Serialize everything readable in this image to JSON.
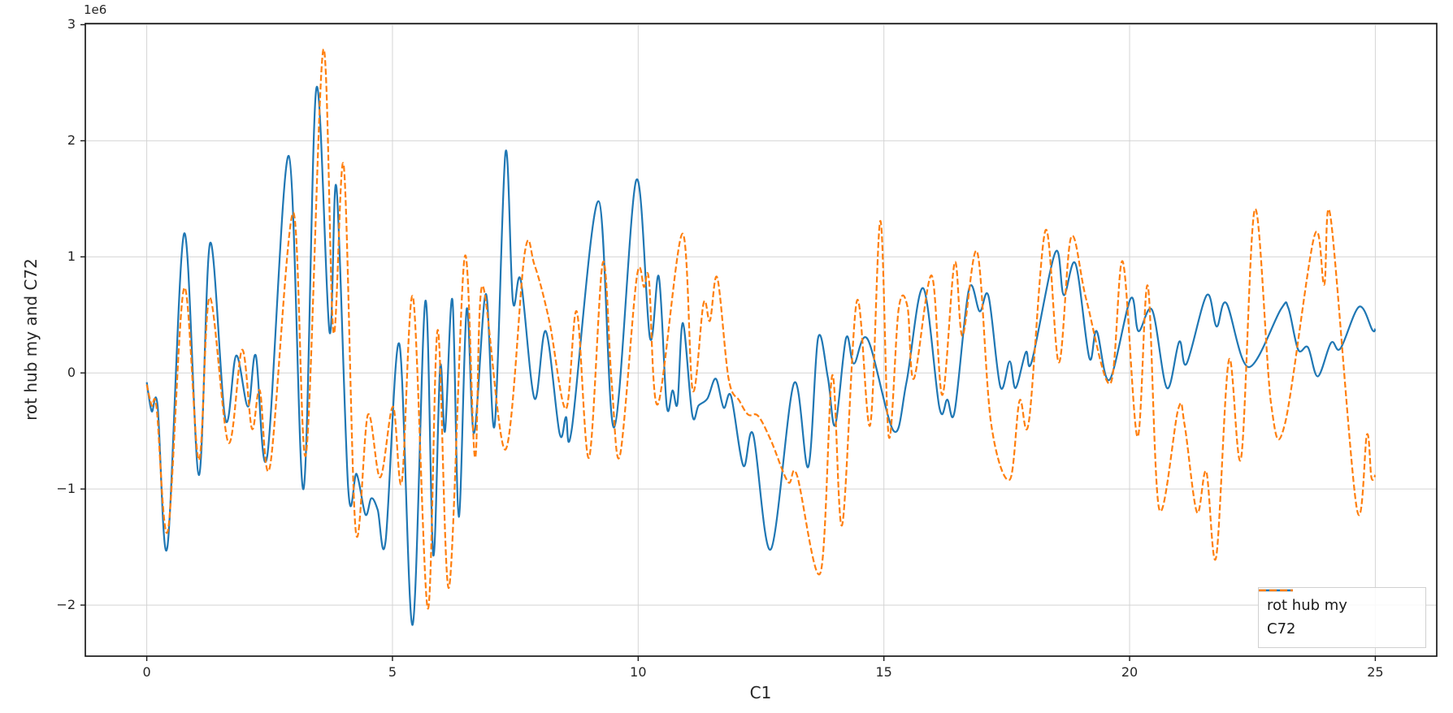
{
  "colors": {
    "blue_series": "#1f77b4",
    "orange_series": "#ff7f0e",
    "grid": "#d4d4d4",
    "spine": "#1a1a1a",
    "text": "#262626",
    "legend_border": "#d0d0d0",
    "background": "#ffffff"
  },
  "chart_data": {
    "type": "line",
    "xlabel": "C1",
    "ylabel": "rot hub my and C72",
    "y_offset_label": "1e6",
    "y_unit_multiplier": 1000000,
    "xlim": [
      -1.25,
      26.25
    ],
    "ylim": [
      -2.44,
      3.01
    ],
    "grid": true,
    "xticks": {
      "values": [
        0,
        5,
        10,
        15,
        20,
        25
      ],
      "labels": [
        "0",
        "5",
        "10",
        "15",
        "20",
        "25"
      ]
    },
    "yticks": {
      "values": [
        3,
        2,
        1,
        0,
        -1,
        -2
      ],
      "labels": [
        "3",
        "2",
        "1",
        "0",
        "−1",
        "−2"
      ]
    },
    "legend": {
      "position": "lower right",
      "entries": [
        "rot hub my",
        "C72"
      ]
    },
    "series": [
      {
        "name": "rot hub my",
        "color": "#1f77b4",
        "style": "solid",
        "points": [
          [
            0,
            -0.08
          ],
          [
            0.1,
            -0.33
          ],
          [
            0.22,
            -0.28
          ],
          [
            0.42,
            -1.5
          ],
          [
            0.76,
            1.2
          ],
          [
            1.06,
            -0.88
          ],
          [
            1.29,
            1.12
          ],
          [
            1.6,
            -0.4
          ],
          [
            1.82,
            0.15
          ],
          [
            2.06,
            -0.29
          ],
          [
            2.22,
            0.15
          ],
          [
            2.45,
            -0.72
          ],
          [
            2.89,
            1.87
          ],
          [
            3.19,
            -1.0
          ],
          [
            3.45,
            2.45
          ],
          [
            3.72,
            0.35
          ],
          [
            3.86,
            1.6
          ],
          [
            4.1,
            -1.0
          ],
          [
            4.27,
            -0.87
          ],
          [
            4.45,
            -1.22
          ],
          [
            4.57,
            -1.08
          ],
          [
            4.7,
            -1.18
          ],
          [
            4.86,
            -1.45
          ],
          [
            5.14,
            0.25
          ],
          [
            5.41,
            -2.17
          ],
          [
            5.67,
            0.62
          ],
          [
            5.83,
            -1.57
          ],
          [
            5.97,
            0.05
          ],
          [
            6.07,
            -0.5
          ],
          [
            6.22,
            0.63
          ],
          [
            6.35,
            -1.24
          ],
          [
            6.51,
            0.55
          ],
          [
            6.66,
            -0.52
          ],
          [
            6.9,
            0.68
          ],
          [
            7.08,
            -0.45
          ],
          [
            7.3,
            1.9
          ],
          [
            7.45,
            0.62
          ],
          [
            7.61,
            0.8
          ],
          [
            7.89,
            -0.22
          ],
          [
            8.12,
            0.36
          ],
          [
            8.4,
            -0.52
          ],
          [
            8.53,
            -0.38
          ],
          [
            8.65,
            -0.48
          ],
          [
            9.19,
            1.48
          ],
          [
            9.51,
            -0.47
          ],
          [
            9.96,
            1.66
          ],
          [
            10.24,
            0.3
          ],
          [
            10.42,
            0.83
          ],
          [
            10.58,
            -0.28
          ],
          [
            10.7,
            -0.15
          ],
          [
            10.8,
            -0.26
          ],
          [
            10.91,
            0.43
          ],
          [
            11.1,
            -0.36
          ],
          [
            11.23,
            -0.28
          ],
          [
            11.41,
            -0.22
          ],
          [
            11.58,
            -0.05
          ],
          [
            11.74,
            -0.3
          ],
          [
            11.89,
            -0.2
          ],
          [
            12.14,
            -0.8
          ],
          [
            12.34,
            -0.53
          ],
          [
            12.7,
            -1.52
          ],
          [
            13.17,
            -0.09
          ],
          [
            13.46,
            -0.81
          ],
          [
            13.66,
            0.3
          ],
          [
            13.86,
            -0.04
          ],
          [
            14.01,
            -0.45
          ],
          [
            14.23,
            0.3
          ],
          [
            14.39,
            0.08
          ],
          [
            14.67,
            0.29
          ],
          [
            15.2,
            -0.5
          ],
          [
            15.46,
            -0.08
          ],
          [
            15.8,
            0.73
          ],
          [
            16.13,
            -0.3
          ],
          [
            16.29,
            -0.23
          ],
          [
            16.44,
            -0.33
          ],
          [
            16.73,
            0.72
          ],
          [
            16.95,
            0.53
          ],
          [
            17.13,
            0.66
          ],
          [
            17.37,
            -0.12
          ],
          [
            17.56,
            0.1
          ],
          [
            17.68,
            -0.13
          ],
          [
            17.89,
            0.18
          ],
          [
            18.01,
            0.1
          ],
          [
            18.49,
            1.04
          ],
          [
            18.66,
            0.67
          ],
          [
            18.9,
            0.94
          ],
          [
            19.18,
            0.13
          ],
          [
            19.33,
            0.36
          ],
          [
            19.59,
            -0.06
          ],
          [
            20.02,
            0.64
          ],
          [
            20.18,
            0.36
          ],
          [
            20.46,
            0.54
          ],
          [
            20.76,
            -0.13
          ],
          [
            21.01,
            0.27
          ],
          [
            21.16,
            0.08
          ],
          [
            21.57,
            0.67
          ],
          [
            21.77,
            0.4
          ],
          [
            21.97,
            0.6
          ],
          [
            22.42,
            0.05
          ],
          [
            23.08,
            0.55
          ],
          [
            23.23,
            0.56
          ],
          [
            23.43,
            0.2
          ],
          [
            23.63,
            0.22
          ],
          [
            23.83,
            -0.03
          ],
          [
            24.1,
            0.26
          ],
          [
            24.29,
            0.21
          ],
          [
            24.67,
            0.57
          ],
          [
            24.94,
            0.37
          ],
          [
            25,
            0.38
          ]
        ]
      },
      {
        "name": "C72",
        "color": "#ff7f0e",
        "style": "dashed",
        "points": [
          [
            0,
            -0.1
          ],
          [
            0.1,
            -0.28
          ],
          [
            0.2,
            -0.3
          ],
          [
            0.43,
            -1.36
          ],
          [
            0.76,
            0.73
          ],
          [
            1.06,
            -0.75
          ],
          [
            1.28,
            0.65
          ],
          [
            1.66,
            -0.6
          ],
          [
            1.94,
            0.2
          ],
          [
            2.14,
            -0.48
          ],
          [
            2.3,
            -0.15
          ],
          [
            2.51,
            -0.8
          ],
          [
            2.98,
            1.38
          ],
          [
            3.24,
            -0.7
          ],
          [
            3.59,
            2.78
          ],
          [
            3.8,
            0.35
          ],
          [
            4.01,
            1.78
          ],
          [
            4.25,
            -1.35
          ],
          [
            4.5,
            -0.36
          ],
          [
            4.75,
            -0.9
          ],
          [
            5.01,
            -0.29
          ],
          [
            5.19,
            -0.94
          ],
          [
            5.42,
            0.65
          ],
          [
            5.72,
            -2.03
          ],
          [
            5.92,
            0.37
          ],
          [
            6.15,
            -1.85
          ],
          [
            6.47,
            1.0
          ],
          [
            6.68,
            -0.73
          ],
          [
            6.83,
            0.75
          ],
          [
            7.3,
            -0.66
          ],
          [
            7.69,
            1.03
          ],
          [
            7.89,
            0.93
          ],
          [
            8.19,
            0.45
          ],
          [
            8.53,
            -0.31
          ],
          [
            8.75,
            0.53
          ],
          [
            9.0,
            -0.73
          ],
          [
            9.28,
            0.95
          ],
          [
            9.46,
            -0.08
          ],
          [
            9.63,
            -0.71
          ],
          [
            9.97,
            0.82
          ],
          [
            10.12,
            0.74
          ],
          [
            10.22,
            0.8
          ],
          [
            10.4,
            -0.27
          ],
          [
            10.9,
            1.2
          ],
          [
            11.11,
            -0.15
          ],
          [
            11.33,
            0.6
          ],
          [
            11.46,
            0.45
          ],
          [
            11.61,
            0.82
          ],
          [
            11.84,
            -0.05
          ],
          [
            12.06,
            -0.24
          ],
          [
            12.24,
            -0.36
          ],
          [
            12.44,
            -0.37
          ],
          [
            12.7,
            -0.58
          ],
          [
            13.05,
            -0.94
          ],
          [
            13.23,
            -0.88
          ],
          [
            13.71,
            -1.72
          ],
          [
            13.95,
            -0.02
          ],
          [
            14.15,
            -1.31
          ],
          [
            14.45,
            0.62
          ],
          [
            14.72,
            -0.45
          ],
          [
            14.93,
            1.31
          ],
          [
            15.1,
            -0.55
          ],
          [
            15.3,
            0.55
          ],
          [
            15.48,
            0.57
          ],
          [
            15.61,
            -0.05
          ],
          [
            15.97,
            0.84
          ],
          [
            16.19,
            -0.19
          ],
          [
            16.44,
            0.95
          ],
          [
            16.6,
            0.32
          ],
          [
            16.9,
            1.04
          ],
          [
            17.18,
            -0.43
          ],
          [
            17.56,
            -0.92
          ],
          [
            17.76,
            -0.24
          ],
          [
            17.95,
            -0.42
          ],
          [
            18.29,
            1.23
          ],
          [
            18.56,
            0.09
          ],
          [
            18.81,
            1.17
          ],
          [
            19.12,
            0.63
          ],
          [
            19.61,
            -0.09
          ],
          [
            19.86,
            0.96
          ],
          [
            20.16,
            -0.55
          ],
          [
            20.37,
            0.75
          ],
          [
            20.6,
            -1.17
          ],
          [
            20.99,
            -0.31
          ],
          [
            21.12,
            -0.45
          ],
          [
            21.37,
            -1.2
          ],
          [
            21.56,
            -0.85
          ],
          [
            21.76,
            -1.59
          ],
          [
            22.02,
            0.11
          ],
          [
            22.27,
            -0.73
          ],
          [
            22.55,
            1.41
          ],
          [
            22.88,
            -0.27
          ],
          [
            23.16,
            -0.44
          ],
          [
            23.76,
            1.18
          ],
          [
            23.96,
            0.76
          ],
          [
            24.09,
            1.34
          ],
          [
            24.62,
            -1.16
          ],
          [
            24.83,
            -0.53
          ],
          [
            24.92,
            -0.9
          ],
          [
            25,
            -0.88
          ]
        ]
      }
    ]
  }
}
